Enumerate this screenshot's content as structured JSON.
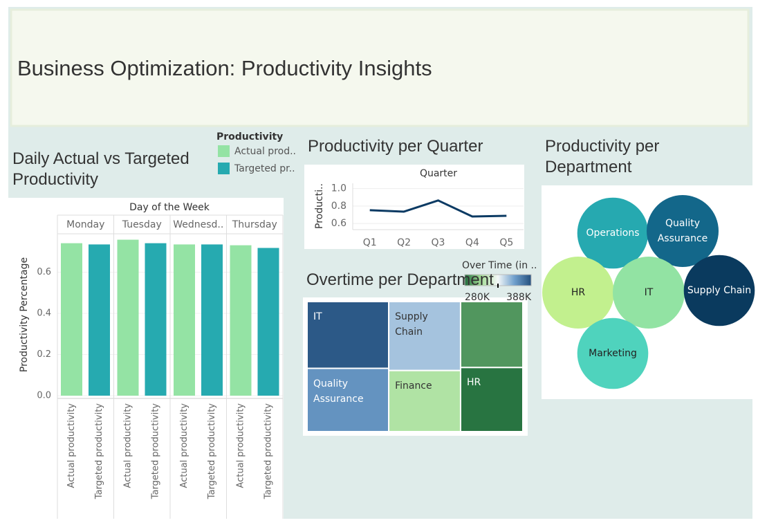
{
  "title": "Business Optimization: Productivity Insights",
  "chart_data": [
    {
      "type": "bar",
      "title": "Daily Actual vs Targeted Productivity",
      "x_header": "Day of the Week",
      "y_label": "Productivity Percentage",
      "categories": [
        "Monday",
        "Tuesday",
        "Wednesd..",
        "Thursday"
      ],
      "series": [
        {
          "name": "Actual productivity",
          "color": "#94e3a4",
          "values": [
            0.741,
            0.758,
            0.735,
            0.731
          ]
        },
        {
          "name": "Targeted productivity",
          "color": "#26aab0",
          "values": [
            0.735,
            0.741,
            0.735,
            0.718
          ]
        }
      ],
      "legend": {
        "title": "Productivity",
        "labels": [
          "Actual prod..",
          "Targeted pr.."
        ]
      },
      "ylim": [
        0,
        0.78
      ],
      "yticks": [
        {
          "value": 0,
          "label": "0.0"
        },
        0.2,
        0.4,
        0.6
      ],
      "grid": true
    },
    {
      "type": "line",
      "title": "Productivity per Quarter",
      "x_header": "Quarter",
      "y_label": "Producti..",
      "categories": [
        "Q1",
        "Q2",
        "Q3",
        "Q4",
        "Q5"
      ],
      "values": [
        0.752,
        0.736,
        0.864,
        0.68,
        0.688
      ],
      "color": "#0b3a63",
      "ylim": [
        0.53,
        1.06
      ],
      "yticks": [
        0.6,
        0.8,
        {
          "value": 1,
          "label": "1.0"
        }
      ],
      "grid": true
    },
    {
      "type": "treemap",
      "title": "Overtime per Department",
      "categories": [
        "IT",
        "Quality Assurance",
        "Supply Chain",
        "Finance",
        null,
        "HR"
      ],
      "values": [
        385000,
        365000,
        350000,
        310000,
        290000,
        282000
      ],
      "legend": {
        "title": "Over Time (in ..",
        "ticks": [
          {
            "value": 280000,
            "label": "280K"
          },
          {
            "value": 388000,
            "label": "388K"
          }
        ]
      },
      "colorlim": [
        280000,
        388000
      ],
      "colors": [
        "#1e6b3a",
        "#a8e09a",
        "#f4f8f8",
        "#6f9fcc",
        "#24507e"
      ]
    },
    {
      "type": "bubble",
      "title": "Productivity per Department",
      "categories": [
        "Operations",
        "Quality Assurance",
        "HR",
        "IT",
        "Supply Chain",
        "Marketing"
      ],
      "values": [
        0.73,
        0.75,
        0.75,
        0.75,
        0.73,
        0.73
      ],
      "colors": [
        "#26a9b0",
        "#13678a",
        "#c2f08e",
        "#92e3a3",
        "#0a3a5e",
        "#4fd3bd"
      ]
    }
  ]
}
